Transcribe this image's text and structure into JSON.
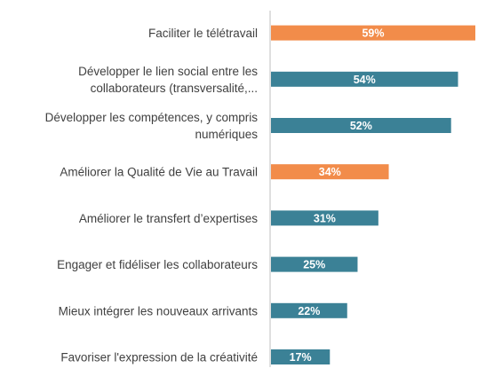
{
  "chart_data": {
    "type": "bar",
    "orientation": "horizontal",
    "categories": [
      [
        "Faciliter le télétravail"
      ],
      [
        "Développer le lien social entre les",
        "collaborateurs (transversalité,..."
      ],
      [
        "Développer les compétences, y compris",
        "numériques"
      ],
      [
        "Améliorer la Qualité de Vie au Travail"
      ],
      [
        "Améliorer le transfert d’expertises"
      ],
      [
        "Engager et fidéliser les collaborateurs"
      ],
      [
        "Mieux intégrer les nouveaux arrivants"
      ],
      [
        "Favoriser l'expression de la créativité"
      ]
    ],
    "values": [
      59,
      54,
      52,
      34,
      31,
      25,
      22,
      17
    ],
    "value_labels": [
      "59%",
      "54%",
      "52%",
      "34%",
      "31%",
      "25%",
      "22%",
      "17%"
    ],
    "highlight": [
      true,
      false,
      false,
      true,
      false,
      false,
      false,
      false
    ],
    "xlim": [
      0,
      59
    ],
    "title": "",
    "xlabel": "",
    "ylabel": "",
    "grid": false,
    "legend": "none"
  },
  "colors": {
    "default_bar": "#3b8196",
    "highlight_bar": "#f28c4a"
  }
}
